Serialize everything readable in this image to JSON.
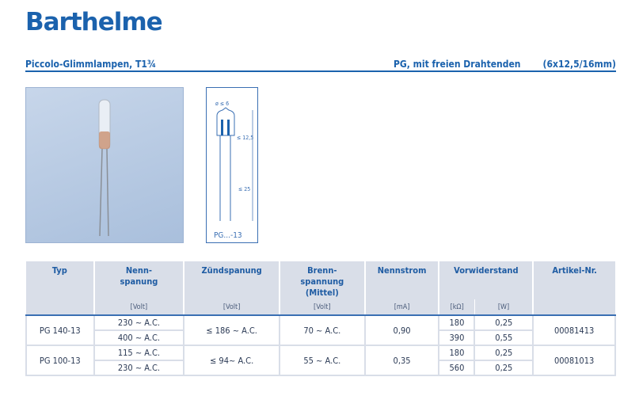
{
  "brand": "Barthelme",
  "title": {
    "left": "Piccolo-Glimmlampen, T1¾",
    "middle": "PG, mit freien Drahtenden",
    "right": "(6x12,5/16mm)"
  },
  "drawing": {
    "label": "PG...-13",
    "diameter": "ø ≤ 6",
    "height": "≤ 12,5",
    "lead": "≤ 25"
  },
  "table": {
    "headers": [
      "Typ",
      "Nenn-\nspanung",
      "Zündspanung",
      "Brenn-\nspannung\n(Mittel)",
      "Nennstrom",
      "Vorwiderstand",
      "Artikel-Nr."
    ],
    "units": {
      "nenn": "[Volt]",
      "zuend": "[Volt]",
      "brenn": "[Volt]",
      "strom": "[mA]",
      "kohm": "[kΩ]",
      "watt": "[W]"
    },
    "rows": [
      {
        "typ": "PG 140-13",
        "nenn": [
          "230 ~ A.C.",
          "400 ~ A.C."
        ],
        "zuend": "≤ 186 ~ A.C.",
        "brenn": "70 ~ A.C.",
        "strom": "0,90",
        "kohm": [
          "180",
          "390"
        ],
        "watt": [
          "0,25",
          "0,55"
        ],
        "artikel": "00081413"
      },
      {
        "typ": "PG 100-13",
        "nenn": [
          "115 ~ A.C.",
          "230 ~ A.C."
        ],
        "zuend": "≤ 94~ A.C.",
        "brenn": "55 ~ A.C.",
        "strom": "0,35",
        "kohm": [
          "180",
          "560"
        ],
        "watt": [
          "0,25",
          "0,25"
        ],
        "artikel": "00081013"
      }
    ]
  }
}
